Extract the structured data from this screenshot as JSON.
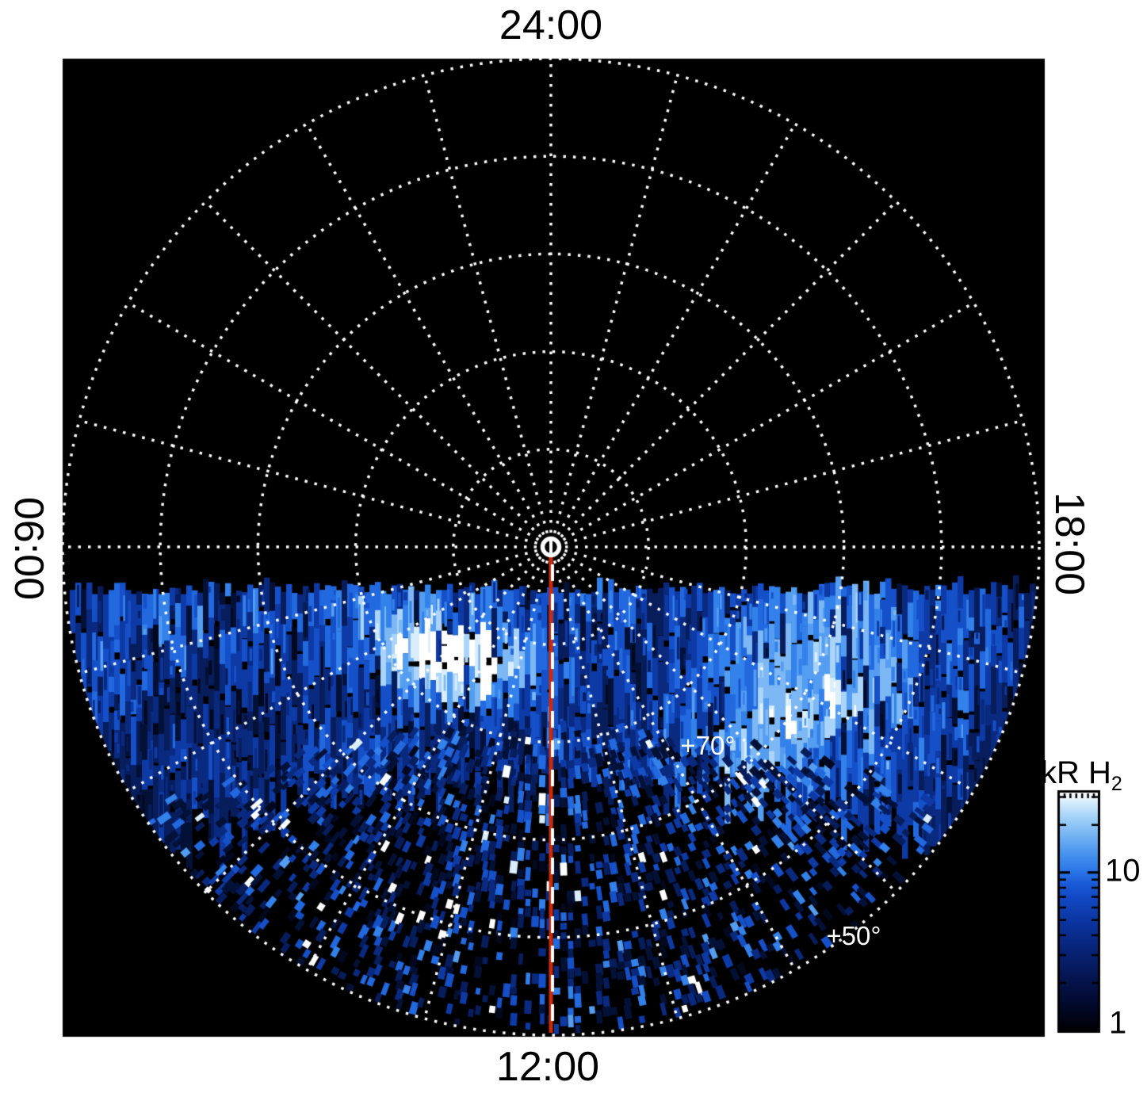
{
  "plot_labels": {
    "top": "24:00",
    "bottom": "12:00",
    "left": "06:00",
    "right": "18:00",
    "lat70": "+70°",
    "lat50": "+50°"
  },
  "colorbar": {
    "title": "kR H",
    "title_sub": "2",
    "ticks": [
      "10",
      "1"
    ],
    "scale": "log",
    "min": 1,
    "max": 32
  },
  "colors": {
    "page_background": "#ffffff",
    "plot_background": "#000000",
    "grid": "#ffffff",
    "text": "#000000",
    "latitude_label_text": "#ffffff",
    "meridian_red": "#cc2a08",
    "meridian_dash": "#ffffff",
    "data_palette": [
      "#02081e",
      "#041137",
      "#071d5c",
      "#0a2a80",
      "#0e3aa6",
      "#1550c8",
      "#2268de",
      "#3381ea",
      "#549df0",
      "#7db8f4",
      "#aad4f9",
      "#d9edfd",
      "#ffffff"
    ],
    "colorbar_stops": [
      [
        0.0,
        "#000002"
      ],
      [
        0.1,
        "#02092a"
      ],
      [
        0.22,
        "#051550"
      ],
      [
        0.34,
        "#082478"
      ],
      [
        0.46,
        "#0c35a2"
      ],
      [
        0.56,
        "#1249c4"
      ],
      [
        0.62,
        "#1b5cd8"
      ],
      [
        0.667,
        "#2a75e8"
      ],
      [
        0.74,
        "#4792ee"
      ],
      [
        0.82,
        "#74b4f3"
      ],
      [
        0.9,
        "#a6d4f8"
      ],
      [
        0.96,
        "#d8edfc"
      ],
      [
        1.0,
        "#ffffff"
      ]
    ]
  },
  "chart_data": {
    "type": "heatmap",
    "projection": "polar-local-time",
    "angular_axis": {
      "unit": "local time (hh:mm)",
      "labels": [
        {
          "position": "top",
          "text": "24:00"
        },
        {
          "position": "left",
          "text": "06:00"
        },
        {
          "position": "bottom",
          "text": "12:00"
        },
        {
          "position": "right",
          "text": "18:00"
        }
      ],
      "hour_line_spacing_hours": 1
    },
    "radial_axis": {
      "unit": "latitude (deg)",
      "pole_latitude": 90,
      "outer_edge_latitude": 50,
      "grid_circle_spacing_deg": 10,
      "labeled_circles": [
        "+70°",
        "+50°"
      ]
    },
    "value_axis": {
      "label": "kR H2",
      "scale": "log",
      "min": 1,
      "max": 32,
      "tick_labels": [
        "10",
        "1"
      ]
    },
    "noon_meridian_marker": {
      "local_time": "12:00",
      "style": "solid red line with white dashes from pole to outer edge",
      "color": "#cc2a08"
    },
    "features": [
      {
        "name": "main-emission-arc",
        "sector": "dawn-to-noon (06:00-12:00)",
        "latitude_range_deg": [
          70,
          82
        ],
        "peak_value_kR": 30,
        "appearance": "bright white auroral arc"
      },
      {
        "name": "diffuse-patchy-emission",
        "sector": "dayside half (06:00 through 12:00 to 18:00)",
        "latitude_range_deg": [
          50,
          70
        ],
        "value_range_kR": [
          1,
          10
        ],
        "appearance": "speckled blue emission, fading toward +50°"
      },
      {
        "name": "nightside-no-data",
        "sector": "18:00 through 24:00 to 06:00",
        "appearance": "black, polar grid only"
      }
    ]
  }
}
